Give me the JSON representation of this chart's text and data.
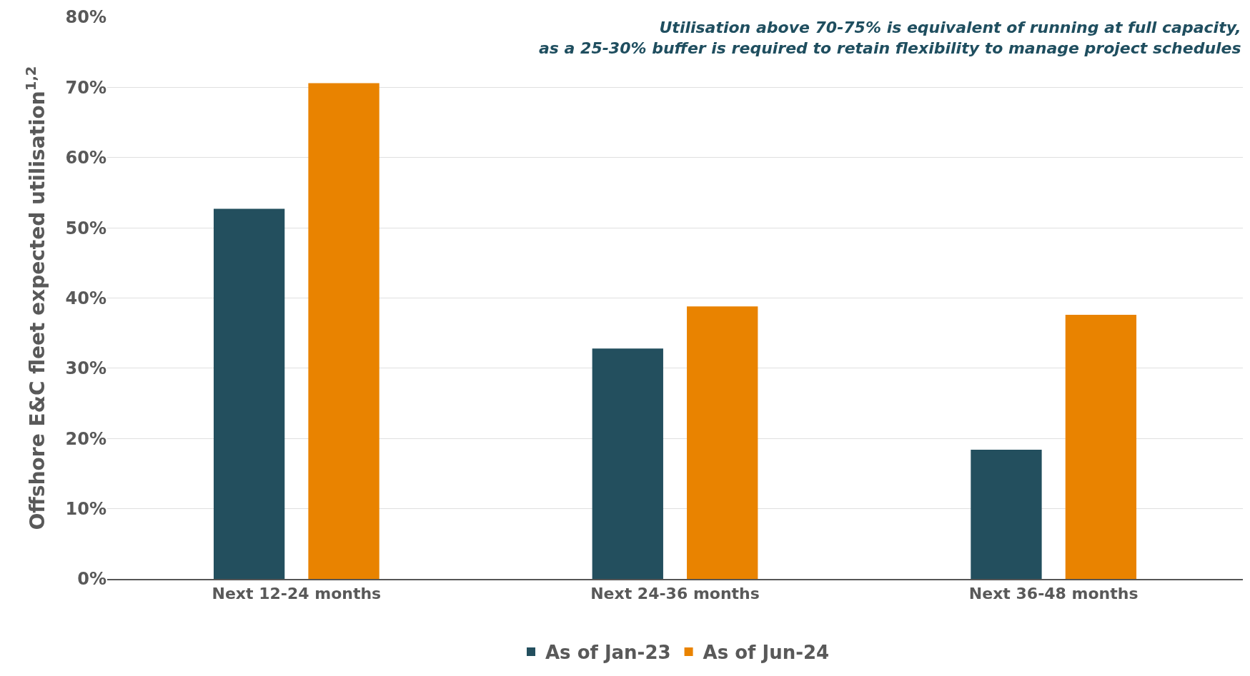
{
  "chart_data": {
    "type": "bar",
    "ylabel": "Offshore E&C fleet expected utilisation$^{1,2}$",
    "categories": [
      "Next 12-24 months",
      "Next 24-36 months",
      "Next 36-48 months"
    ],
    "series": [
      {
        "name": "As of Jan-23",
        "color": "#234f5e",
        "values": [
          52.7,
          32.8,
          18.4
        ]
      },
      {
        "name": "As of Jun-24",
        "color": "#e98300",
        "values": [
          70.6,
          38.8,
          37.6
        ]
      }
    ],
    "ylim": [
      0,
      80
    ],
    "yticks": [
      {
        "value": 0,
        "label": "0%"
      },
      {
        "value": 10,
        "label": "10%"
      },
      {
        "value": 20,
        "label": "20%"
      },
      {
        "value": 30,
        "label": "30%"
      },
      {
        "value": 40,
        "label": "40%"
      },
      {
        "value": 50,
        "label": "50%"
      },
      {
        "value": 60,
        "label": "60%"
      },
      {
        "value": 70,
        "label": "70%"
      },
      {
        "value": 80,
        "label": "80%"
      }
    ],
    "grid": "y",
    "legend": "bottom",
    "annotations": [
      "Utilisation above 70-75% is equivalent of running at full capacity,\nas a 25-30% buffer is required to retain flexibility to manage project schedules"
    ]
  }
}
